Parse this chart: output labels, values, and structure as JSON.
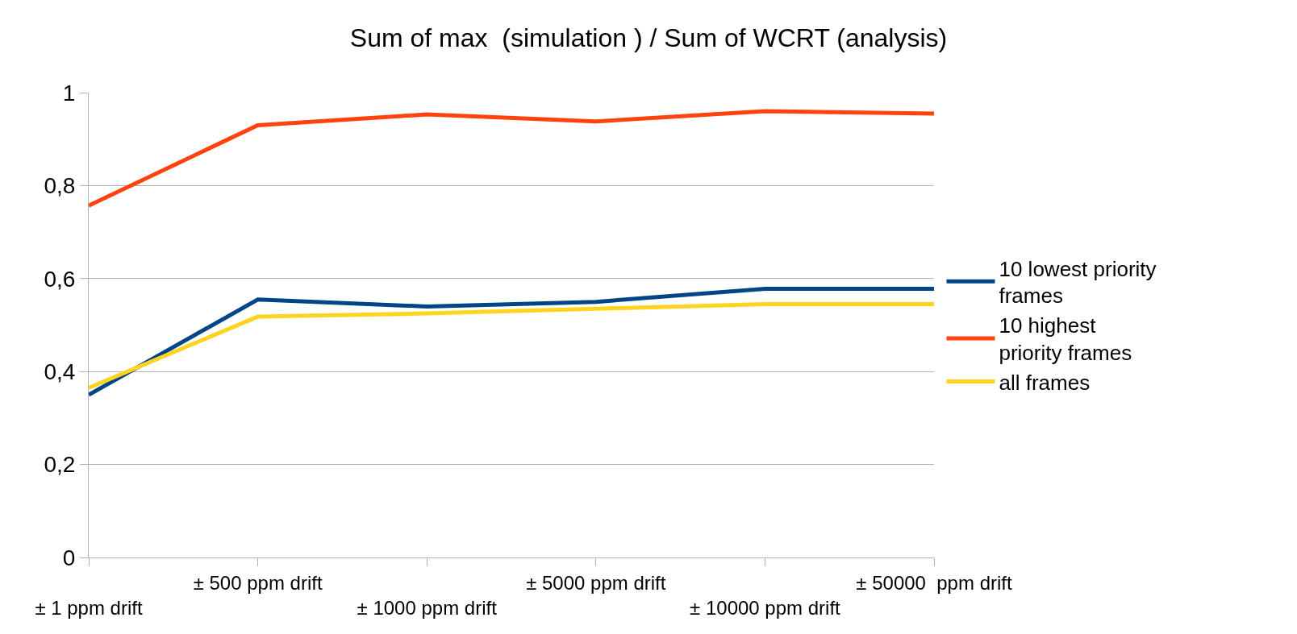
{
  "chart_data": {
    "type": "line",
    "title": "Sum of max  (simulation ) / Sum of WCRT (analysis)",
    "categories": [
      "± 1 ppm drift",
      "± 500 ppm drift",
      "± 1000 ppm drift",
      "± 5000 ppm drift",
      "± 10000 ppm drift",
      "± 50000  ppm drift"
    ],
    "series": [
      {
        "name": "10 lowest priority frames",
        "color": "#004586",
        "values": [
          0.35,
          0.555,
          0.54,
          0.55,
          0.578,
          0.578
        ]
      },
      {
        "name": "10 highest priority frames",
        "color": "#ff420e",
        "values": [
          0.757,
          0.93,
          0.953,
          0.938,
          0.96,
          0.955
        ]
      },
      {
        "name": "all frames",
        "color": "#ffd320",
        "values": [
          0.365,
          0.518,
          0.525,
          0.535,
          0.545,
          0.545
        ]
      }
    ],
    "ylim": [
      0,
      1
    ],
    "yticks": [
      0,
      {
        "value": 0.2,
        "label": "0,2"
      },
      {
        "value": 0.4,
        "label": "0,4"
      },
      {
        "value": 0.6,
        "label": "0,6"
      },
      {
        "value": 0.8,
        "label": "0,8"
      },
      1
    ],
    "grid": "y",
    "legend": "right",
    "marker": "none"
  }
}
